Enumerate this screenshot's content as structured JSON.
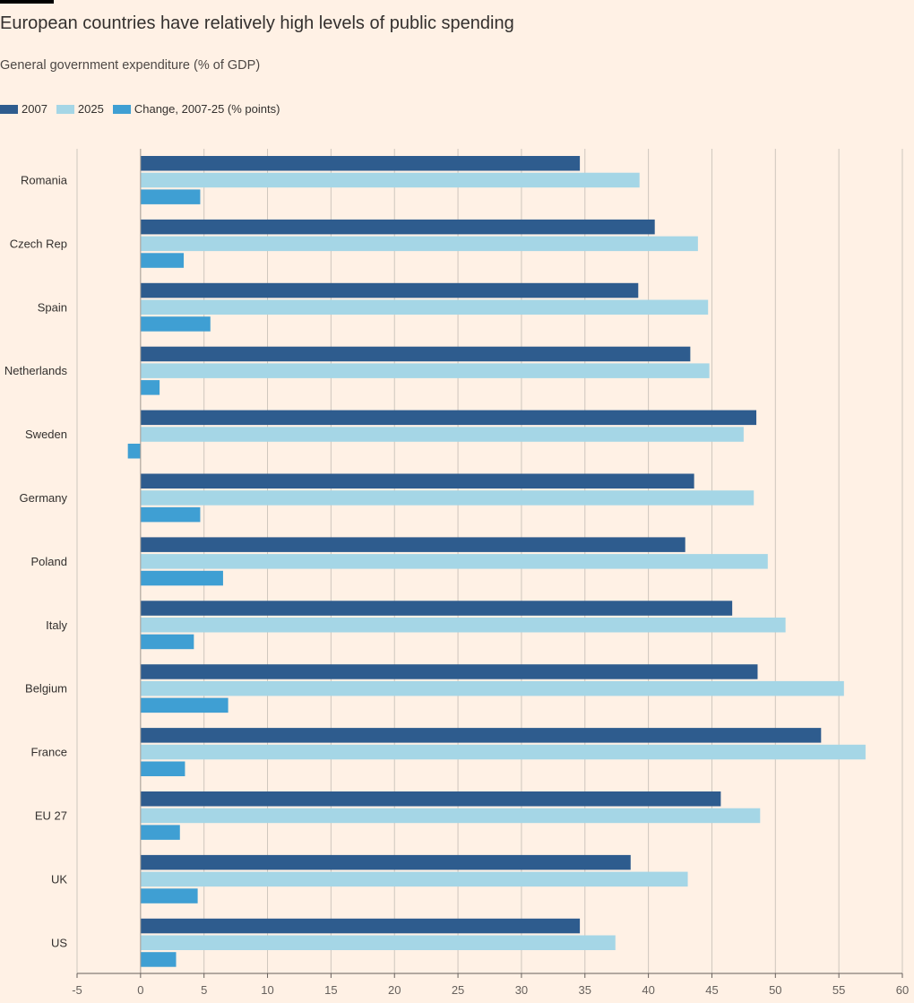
{
  "header": {
    "title": "European countries have relatively high levels of public spending",
    "subtitle": "General government expenditure (% of GDP)"
  },
  "colors": {
    "background": "#FFF1E5",
    "grid": "#CEC6BD",
    "series_2007": "#2E5C8E",
    "series_2025": "#A5D6E6",
    "series_change": "#3F9FD3"
  },
  "chart_data": {
    "type": "bar",
    "orientation": "horizontal",
    "title": "European countries have relatively high levels of public spending",
    "subtitle": "General government expenditure (% of GDP)",
    "xlabel": "",
    "ylabel": "",
    "xlim": [
      -5,
      60
    ],
    "xticks": [
      -5,
      0,
      5,
      10,
      15,
      20,
      25,
      30,
      35,
      40,
      45,
      50,
      55,
      60
    ],
    "grid": true,
    "legend_position": "top-left",
    "categories": [
      "Romania",
      "Czech Rep",
      "Spain",
      "Netherlands",
      "Sweden",
      "Germany",
      "Poland",
      "Italy",
      "Belgium",
      "France",
      "EU 27",
      "UK",
      "US"
    ],
    "series": [
      {
        "name": "2007",
        "color": "#2E5C8E",
        "values": [
          34.6,
          40.5,
          39.2,
          43.3,
          48.5,
          43.6,
          42.9,
          46.6,
          48.6,
          53.6,
          45.7,
          38.6,
          34.6
        ]
      },
      {
        "name": "2025",
        "color": "#A5D6E6",
        "values": [
          39.3,
          43.9,
          44.7,
          44.8,
          47.5,
          48.3,
          49.4,
          50.8,
          55.4,
          57.1,
          48.8,
          43.1,
          37.4
        ]
      },
      {
        "name": "Change, 2007-25 (% points)",
        "color": "#3F9FD3",
        "values": [
          4.7,
          3.4,
          5.5,
          1.5,
          -1.0,
          4.7,
          6.5,
          4.2,
          6.9,
          3.5,
          3.1,
          4.5,
          2.8
        ]
      }
    ]
  }
}
